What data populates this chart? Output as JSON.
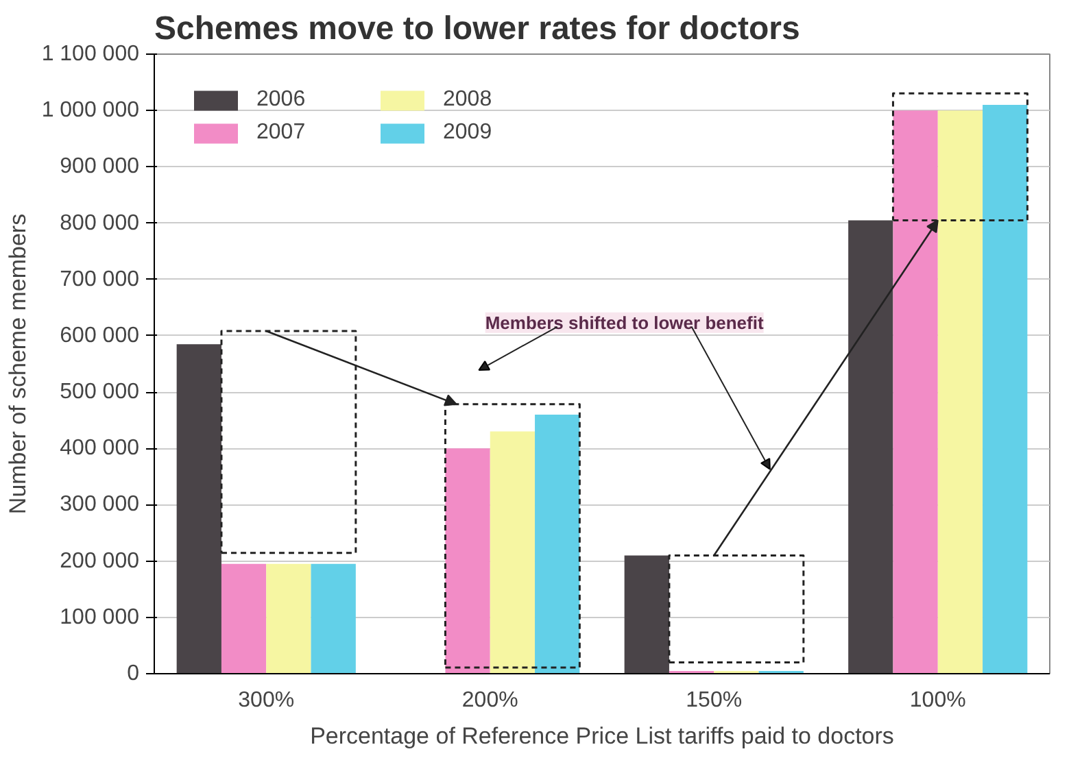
{
  "chart_data": {
    "type": "bar",
    "title": "Schemes move to lower rates for doctors",
    "xlabel": "Percentage of Reference Price List tariffs paid to doctors",
    "ylabel": "Number of scheme members",
    "categories": [
      "300%",
      "200%",
      "150%",
      "100%"
    ],
    "series": [
      {
        "name": "2006",
        "color": "#4a4448",
        "values": [
          585000,
          0,
          210000,
          805000
        ]
      },
      {
        "name": "2007",
        "color": "#f28cc6",
        "values": [
          195000,
          400000,
          5000,
          1000000
        ]
      },
      {
        "name": "2008",
        "color": "#f6f6a2",
        "values": [
          195000,
          430000,
          5000,
          1000000
        ]
      },
      {
        "name": "2009",
        "color": "#62d0e8",
        "values": [
          195000,
          460000,
          5000,
          1010000
        ]
      }
    ],
    "ylim": [
      0,
      1100000
    ],
    "yticks": [
      {
        "value": 0,
        "label": "0"
      },
      {
        "value": 100000,
        "label": "100 000"
      },
      {
        "value": 200000,
        "label": "200 000"
      },
      {
        "value": 300000,
        "label": "300 000"
      },
      {
        "value": 400000,
        "label": "400 000"
      },
      {
        "value": 500000,
        "label": "500 000"
      },
      {
        "value": 600000,
        "label": "600 000"
      },
      {
        "value": 700000,
        "label": "700 000"
      },
      {
        "value": 800000,
        "label": "800 000"
      },
      {
        "value": 900000,
        "label": "900 000"
      },
      {
        "value": 1000000,
        "label": "1 000 000"
      },
      {
        "value": 1100000,
        "label": "1 100 000"
      }
    ],
    "grid": "y",
    "legend": "top left",
    "annotations": [
      "Members shifted to lower benefit"
    ]
  }
}
